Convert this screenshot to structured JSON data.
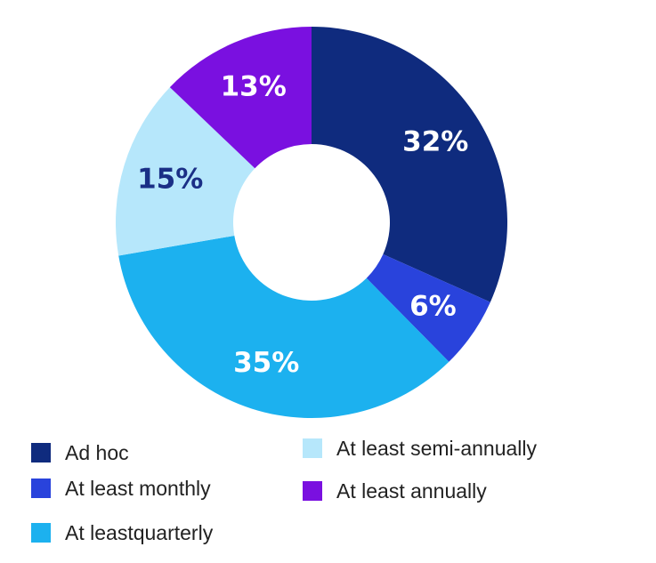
{
  "chart_data": {
    "type": "pie",
    "donut": true,
    "title": "",
    "categories": [
      "Ad  hoc",
      "At least monthly",
      "At leastquarterly",
      "At least semi-annually",
      "At least annually"
    ],
    "values": [
      32,
      6,
      35,
      15,
      13
    ],
    "labels": [
      "32%",
      "6%",
      "35%",
      "15%",
      "13%"
    ],
    "colors": [
      "#0f2b7e",
      "#2943dc",
      "#1cb1ef",
      "#b6e7fb",
      "#7a10e0"
    ],
    "label_colors": [
      "#ffffff",
      "#ffffff",
      "#ffffff",
      "#1a2f86",
      "#ffffff"
    ],
    "legend_placement": "bottom",
    "start_angle_deg": 0,
    "direction": "clockwise"
  }
}
